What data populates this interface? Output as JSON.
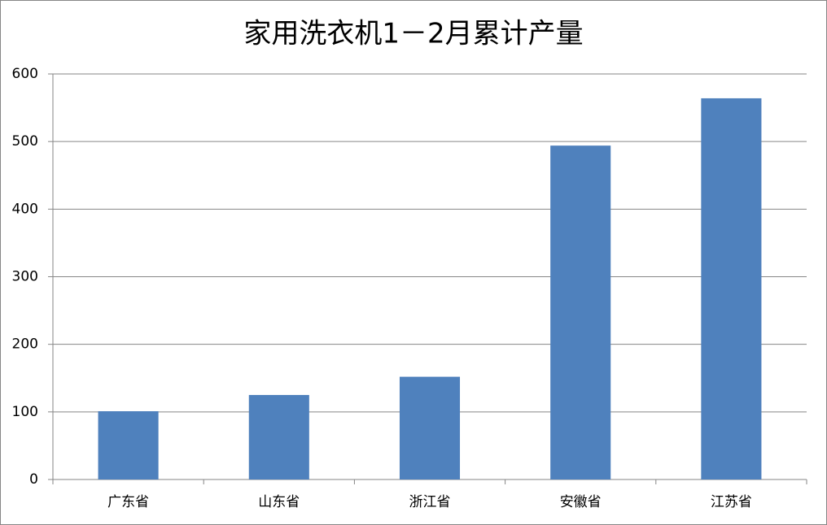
{
  "chart_data": {
    "type": "bar",
    "title": "家用洗衣机1－2月累计产量",
    "categories": [
      "广东省",
      "山东省",
      "浙江省",
      "安徽省",
      "江苏省"
    ],
    "values": [
      101,
      125,
      152,
      494,
      564
    ],
    "color": "#4f81bd",
    "ylim": [
      0,
      600
    ],
    "yticks": [
      0,
      100,
      200,
      300,
      400,
      500,
      600
    ],
    "grid": true
  }
}
